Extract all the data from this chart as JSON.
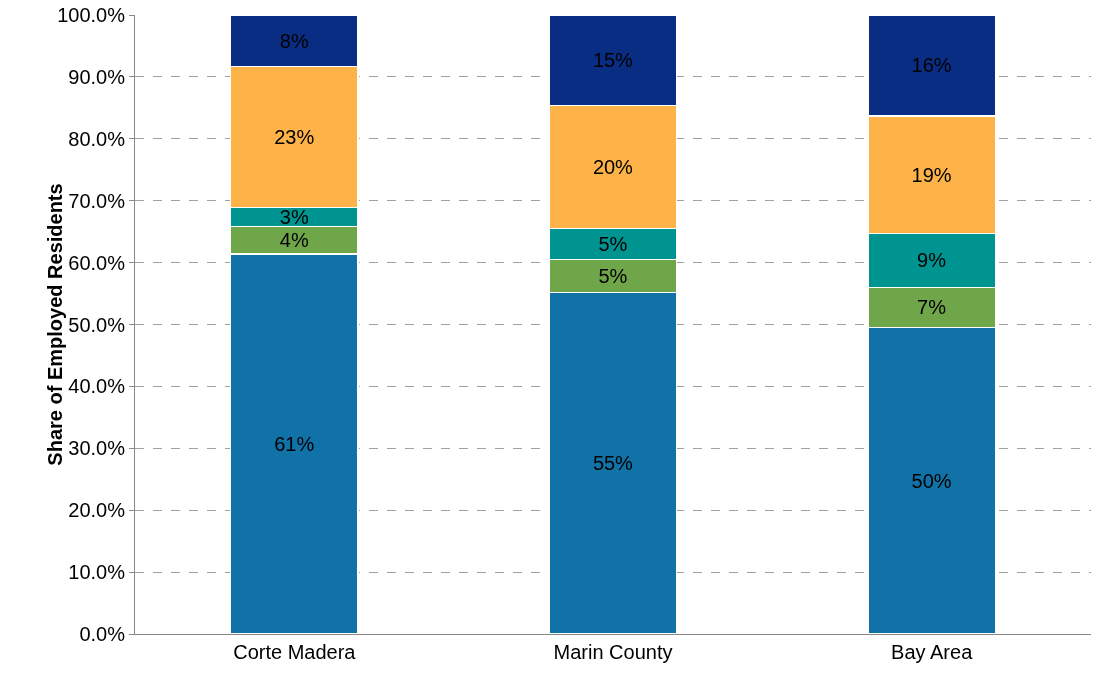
{
  "chart_data": {
    "type": "bar",
    "stacked": true,
    "ylabel": "Share of Employed Residents",
    "categories": [
      "Corte Madera",
      "Marin County",
      "Bay Area"
    ],
    "series": [
      {
        "color": "#1172a8",
        "values": [
          61.4,
          55.2,
          49.5
        ],
        "value_labels": [
          "61%",
          "55%",
          "50%"
        ]
      },
      {
        "color": "#70a64a",
        "values": [
          4.4,
          5.3,
          6.5
        ],
        "value_labels": [
          "4%",
          "5%",
          "7%"
        ]
      },
      {
        "color": "#009490",
        "values": [
          3.1,
          5.0,
          8.7
        ],
        "value_labels": [
          "3%",
          "5%",
          "9%"
        ]
      },
      {
        "color": "#fdb347",
        "values": [
          22.8,
          19.9,
          19.0
        ],
        "value_labels": [
          "23%",
          "20%",
          "19%"
        ]
      },
      {
        "color": "#0a2d84",
        "values": [
          8.3,
          14.6,
          16.3
        ],
        "value_labels": [
          "8%",
          "15%",
          "16%"
        ]
      }
    ],
    "ylim": [
      0,
      100
    ],
    "yticks": [
      {
        "value": 0,
        "label": "0.0%"
      },
      {
        "value": 10,
        "label": "10.0%"
      },
      {
        "value": 20,
        "label": "20.0%"
      },
      {
        "value": 30,
        "label": "30.0%"
      },
      {
        "value": 40,
        "label": "40.0%"
      },
      {
        "value": 50,
        "label": "50.0%"
      },
      {
        "value": 60,
        "label": "60.0%"
      },
      {
        "value": 70,
        "label": "70.0%"
      },
      {
        "value": 80,
        "label": "80.0%"
      },
      {
        "value": 90,
        "label": "90.0%"
      },
      {
        "value": 100,
        "label": "100.0%"
      }
    ],
    "grid": "y"
  }
}
